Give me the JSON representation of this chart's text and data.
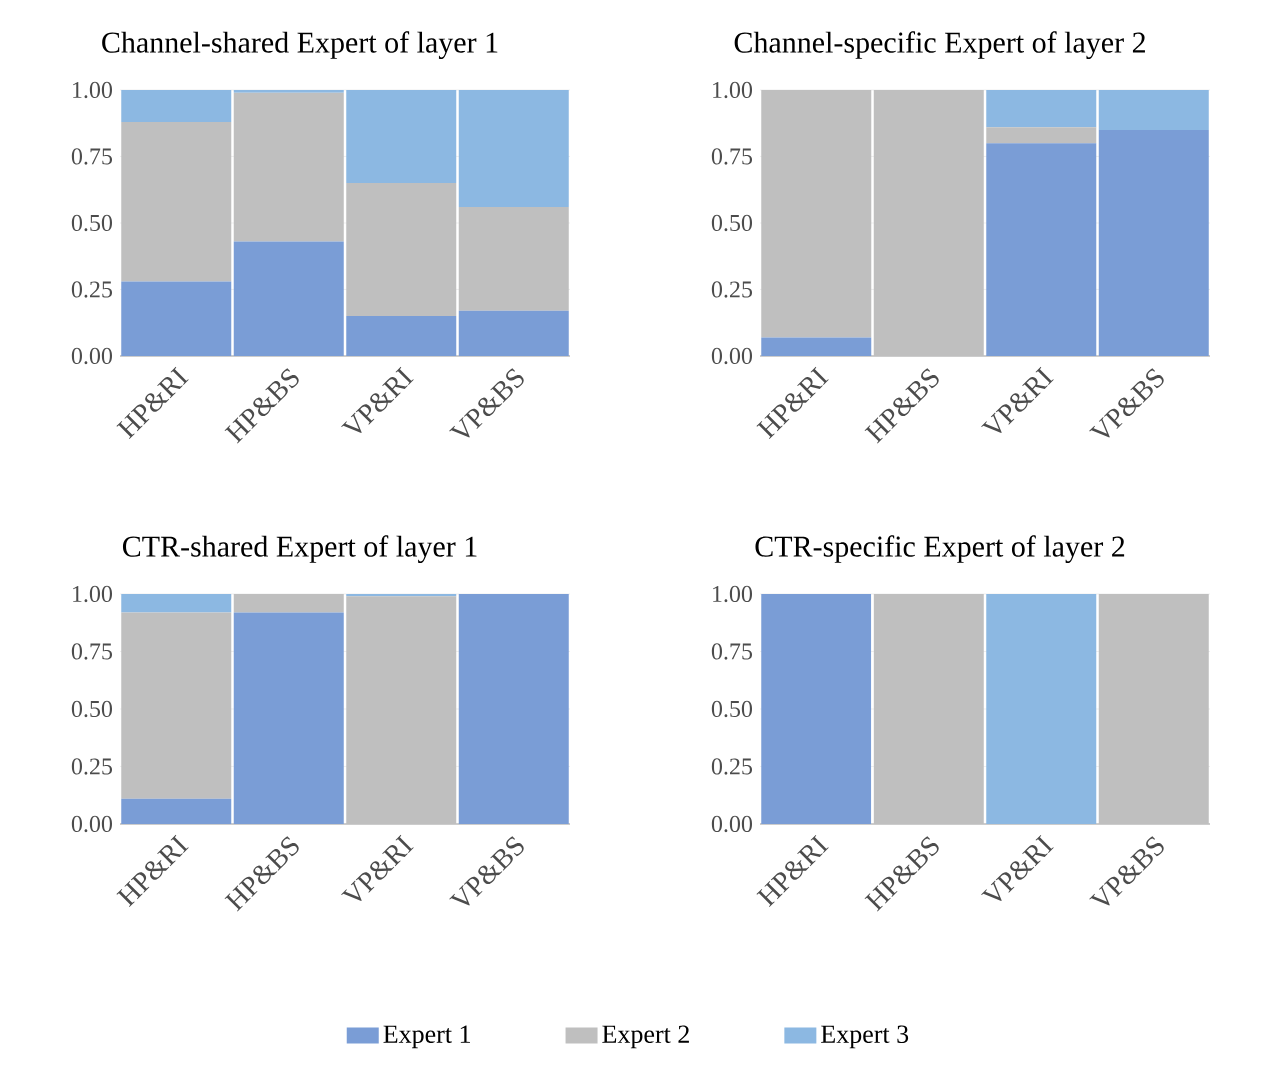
{
  "chart_data": [
    {
      "type": "bar",
      "title": "Channel-shared Expert of layer 1",
      "stacked": true,
      "grid": "y",
      "categories": [
        "HP&RI",
        "HP&BS",
        "VP&RI",
        "VP&BS"
      ],
      "ylim": [
        0,
        1
      ],
      "yticks": [
        {
          "value": 0,
          "label": "0.00"
        },
        {
          "value": 0.25,
          "label": "0.25"
        },
        {
          "value": 0.5,
          "label": "0.50"
        },
        {
          "value": 0.75,
          "label": "0.75"
        },
        {
          "value": 1,
          "label": "1.00"
        }
      ],
      "series": [
        {
          "color": "#7a9dd6",
          "values": [
            0.28,
            0.43,
            0.15,
            0.17
          ]
        },
        {
          "color": "#bfbfbf",
          "values": [
            0.6,
            0.56,
            0.5,
            0.39
          ]
        },
        {
          "color": "#8cb8e2",
          "values": [
            0.12,
            0.01,
            0.35,
            0.44
          ]
        }
      ]
    },
    {
      "type": "bar",
      "title": "Channel-specific Expert  of layer 2",
      "stacked": true,
      "grid": "y",
      "categories": [
        "HP&RI",
        "HP&BS",
        "VP&RI",
        "VP&BS"
      ],
      "ylim": [
        0,
        1
      ],
      "yticks": [
        {
          "value": 0,
          "label": "0.00"
        },
        {
          "value": 0.25,
          "label": "0.25"
        },
        {
          "value": 0.5,
          "label": "0.50"
        },
        {
          "value": 0.75,
          "label": "0.75"
        },
        {
          "value": 1,
          "label": "1.00"
        }
      ],
      "series": [
        {
          "color": "#7a9dd6",
          "values": [
            0.07,
            0,
            0.8,
            0.85
          ]
        },
        {
          "color": "#bfbfbf",
          "values": [
            0.93,
            1,
            0.06,
            0
          ]
        },
        {
          "color": "#8cb8e2",
          "values": [
            0,
            0,
            0.14,
            0.15
          ]
        }
      ]
    },
    {
      "type": "bar",
      "title": "CTR-shared Expert of layer 1",
      "stacked": true,
      "grid": "y",
      "categories": [
        "HP&RI",
        "HP&BS",
        "VP&RI",
        "VP&BS"
      ],
      "ylim": [
        0,
        1
      ],
      "yticks": [
        {
          "value": 0,
          "label": "0.00"
        },
        {
          "value": 0.25,
          "label": "0.25"
        },
        {
          "value": 0.5,
          "label": "0.50"
        },
        {
          "value": 0.75,
          "label": "0.75"
        },
        {
          "value": 1,
          "label": "1.00"
        }
      ],
      "series": [
        {
          "color": "#7a9dd6",
          "values": [
            0.11,
            0.92,
            0,
            1
          ]
        },
        {
          "color": "#bfbfbf",
          "values": [
            0.81,
            0.08,
            0.99,
            0
          ]
        },
        {
          "color": "#8cb8e2",
          "values": [
            0.08,
            0,
            0.01,
            0
          ]
        }
      ]
    },
    {
      "type": "bar",
      "title": "CTR-specific Expert of layer 2",
      "stacked": true,
      "grid": "y",
      "legend": "bottom",
      "categories": [
        "HP&RI",
        "HP&BS",
        "VP&RI",
        "VP&BS"
      ],
      "ylim": [
        0,
        1
      ],
      "yticks": [
        {
          "value": 0,
          "label": "0.00"
        },
        {
          "value": 0.25,
          "label": "0.25"
        },
        {
          "value": 0.5,
          "label": "0.50"
        },
        {
          "value": 0.75,
          "label": "0.75"
        },
        {
          "value": 1,
          "label": "1.00"
        }
      ],
      "series": [
        {
          "name": "Expert 1",
          "color": "#7a9dd6",
          "values": [
            1,
            0,
            0,
            0
          ]
        },
        {
          "name": "Expert 2",
          "color": "#bfbfbf",
          "values": [
            0,
            1,
            0,
            1
          ]
        },
        {
          "name": "Expert 3",
          "color": "#8cb8e2",
          "values": [
            0,
            0,
            1,
            0
          ]
        }
      ]
    }
  ]
}
